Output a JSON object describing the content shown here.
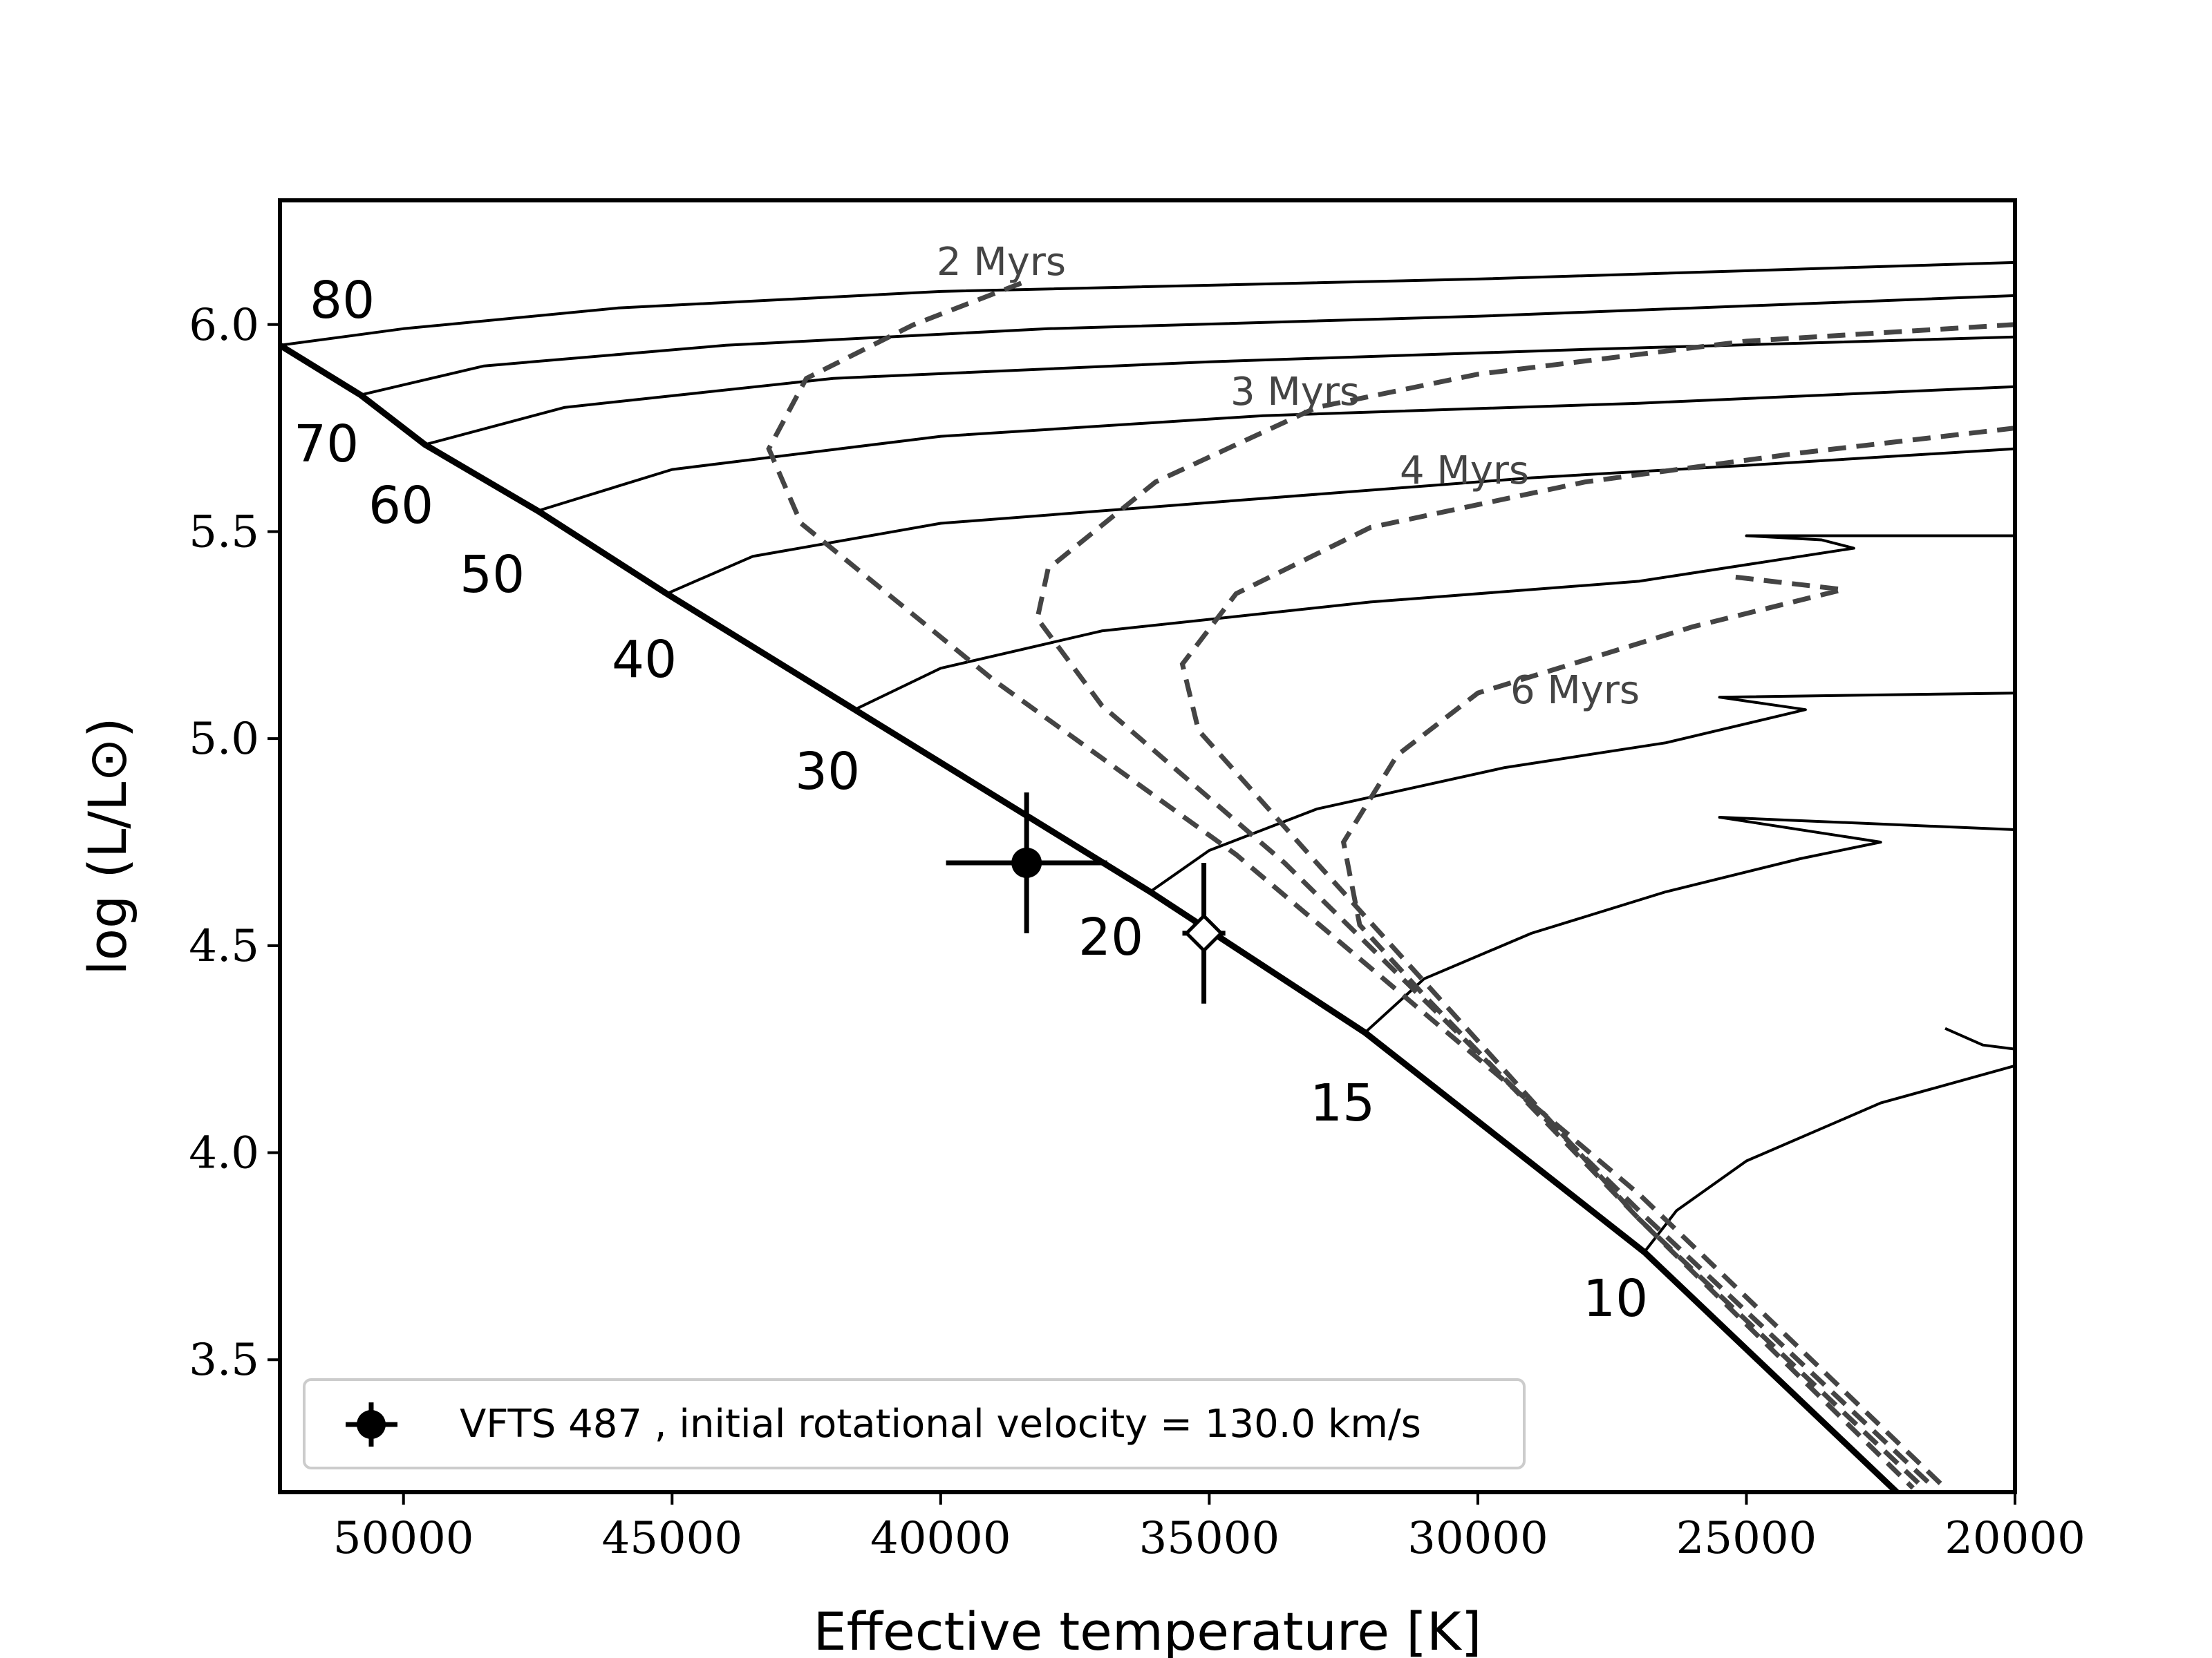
{
  "chart_data": {
    "type": "line",
    "title": "",
    "xlabel": "Effective temperature [K]",
    "ylabel": "log (L/L⊙)",
    "xlim": [
      52300,
      20000
    ],
    "ylim": [
      3.18,
      6.3
    ],
    "x_inverted": true,
    "grid": false,
    "legend_position": "lower-left",
    "x_ticks": [
      50000,
      45000,
      40000,
      35000,
      30000,
      25000,
      20000
    ],
    "x_tick_labels": [
      "50000",
      "45000",
      "40000",
      "35000",
      "30000",
      "25000",
      "20000"
    ],
    "y_ticks": [
      3.5,
      4.0,
      4.5,
      5.0,
      5.5,
      6.0
    ],
    "y_tick_labels": [
      "3.5",
      "4.0",
      "4.5",
      "5.0",
      "5.5",
      "6.0"
    ],
    "zams": [
      [
        52300,
        5.95
      ],
      [
        50800,
        5.83
      ],
      [
        49600,
        5.71
      ],
      [
        47500,
        5.55
      ],
      [
        45100,
        5.35
      ],
      [
        41600,
        5.07
      ],
      [
        36100,
        4.63
      ],
      [
        32100,
        4.29
      ],
      [
        26900,
        3.76
      ],
      [
        22200,
        3.18
      ]
    ],
    "tracks": [
      {
        "mass": "80",
        "points": [
          [
            52300,
            5.95
          ],
          [
            50000,
            5.99
          ],
          [
            46000,
            6.04
          ],
          [
            40000,
            6.08
          ],
          [
            30000,
            6.11
          ],
          [
            20000,
            6.15
          ]
        ]
      },
      {
        "mass": "70",
        "points": [
          [
            50800,
            5.83
          ],
          [
            48500,
            5.9
          ],
          [
            44000,
            5.95
          ],
          [
            38000,
            5.99
          ],
          [
            30000,
            6.02
          ],
          [
            20000,
            6.07
          ]
        ]
      },
      {
        "mass": "60",
        "points": [
          [
            49600,
            5.71
          ],
          [
            47000,
            5.8
          ],
          [
            42000,
            5.87
          ],
          [
            35000,
            5.91
          ],
          [
            28000,
            5.94
          ],
          [
            20000,
            5.97
          ]
        ]
      },
      {
        "mass": "50",
        "points": [
          [
            47500,
            5.55
          ],
          [
            45000,
            5.65
          ],
          [
            40000,
            5.73
          ],
          [
            34000,
            5.78
          ],
          [
            27000,
            5.81
          ],
          [
            20000,
            5.85
          ]
        ]
      },
      {
        "mass": "40",
        "points": [
          [
            45100,
            5.35
          ],
          [
            43500,
            5.44
          ],
          [
            40000,
            5.52
          ],
          [
            35000,
            5.57
          ],
          [
            29000,
            5.63
          ],
          [
            25000,
            5.66
          ],
          [
            20000,
            5.7
          ]
        ]
      },
      {
        "mass": "30",
        "points": [
          [
            41600,
            5.07
          ],
          [
            40000,
            5.17
          ],
          [
            37000,
            5.26
          ],
          [
            32000,
            5.33
          ],
          [
            27000,
            5.38
          ],
          [
            23000,
            5.46
          ],
          [
            23600,
            5.48
          ],
          [
            25000,
            5.49
          ],
          [
            20000,
            5.49
          ]
        ]
      },
      {
        "mass": "20",
        "points": [
          [
            36100,
            4.63
          ],
          [
            35000,
            4.73
          ],
          [
            33000,
            4.83
          ],
          [
            29500,
            4.93
          ],
          [
            26500,
            4.99
          ],
          [
            23900,
            5.07
          ],
          [
            25500,
            5.1
          ],
          [
            20000,
            5.11
          ]
        ]
      },
      {
        "mass": "15",
        "points": [
          [
            32100,
            4.29
          ],
          [
            31000,
            4.42
          ],
          [
            29000,
            4.53
          ],
          [
            26500,
            4.63
          ],
          [
            24000,
            4.71
          ],
          [
            22500,
            4.75
          ],
          [
            25500,
            4.81
          ],
          [
            20000,
            4.78
          ]
        ]
      },
      {
        "mass": "10",
        "points": [
          [
            26900,
            3.76
          ],
          [
            26300,
            3.86
          ],
          [
            25000,
            3.98
          ],
          [
            22500,
            4.12
          ],
          [
            20000,
            4.21
          ]
        ]
      },
      {
        "mass": "",
        "points": [
          [
            21300,
            4.3
          ],
          [
            20600,
            4.26
          ],
          [
            20000,
            4.25
          ]
        ]
      }
    ],
    "isochrones": [
      {
        "label": "2 Myrs",
        "points": [
          [
            38500,
            6.1
          ],
          [
            40500,
            6.0
          ],
          [
            42500,
            5.87
          ],
          [
            43200,
            5.7
          ],
          [
            42600,
            5.52
          ],
          [
            39000,
            5.14
          ],
          [
            34500,
            4.72
          ],
          [
            27000,
            3.9
          ],
          [
            21300,
            3.19
          ]
        ]
      },
      {
        "label": "3 Myrs",
        "points": [
          [
            20000,
            6.0
          ],
          [
            25000,
            5.96
          ],
          [
            30000,
            5.88
          ],
          [
            33000,
            5.8
          ],
          [
            36000,
            5.62
          ],
          [
            38000,
            5.41
          ],
          [
            38200,
            5.29
          ],
          [
            37000,
            5.08
          ],
          [
            33600,
            4.7
          ],
          [
            27000,
            3.86
          ],
          [
            21500,
            3.19
          ]
        ]
      },
      {
        "label": "4 Myrs",
        "points": [
          [
            20000,
            5.75
          ],
          [
            24000,
            5.69
          ],
          [
            28000,
            5.62
          ],
          [
            32000,
            5.51
          ],
          [
            34500,
            5.35
          ],
          [
            35500,
            5.18
          ],
          [
            35200,
            5.02
          ],
          [
            33000,
            4.7
          ],
          [
            27000,
            3.84
          ],
          [
            21700,
            3.19
          ]
        ]
      },
      {
        "label": "6 Myrs",
        "points": [
          [
            25200,
            5.39
          ],
          [
            23200,
            5.36
          ],
          [
            26000,
            5.27
          ],
          [
            30000,
            5.11
          ],
          [
            31500,
            4.96
          ],
          [
            32500,
            4.75
          ],
          [
            32200,
            4.55
          ],
          [
            31000,
            4.38
          ],
          [
            27000,
            3.84
          ],
          [
            21900,
            3.19
          ]
        ]
      }
    ],
    "mass_labels": [
      "80",
      "70",
      "60",
      "50",
      "40",
      "30",
      "20",
      "15",
      "10"
    ],
    "isochrone_labels": [
      "2 Myrs",
      "3 Myrs",
      "4 Myrs",
      "6 Myrs"
    ],
    "observations": [
      {
        "name": "VFTS 487",
        "teff": 38400,
        "teff_err": 1500,
        "logL": 4.7,
        "logL_err": 0.17,
        "marker": "filled-circle"
      },
      {
        "name": "",
        "teff": 35100,
        "teff_err": 400,
        "logL": 4.53,
        "logL_err": 0.17,
        "marker": "open-diamond"
      }
    ],
    "legend": {
      "entries": [
        "VFTS 487 , initial rotational velocity = 130.0 km/s"
      ]
    }
  }
}
